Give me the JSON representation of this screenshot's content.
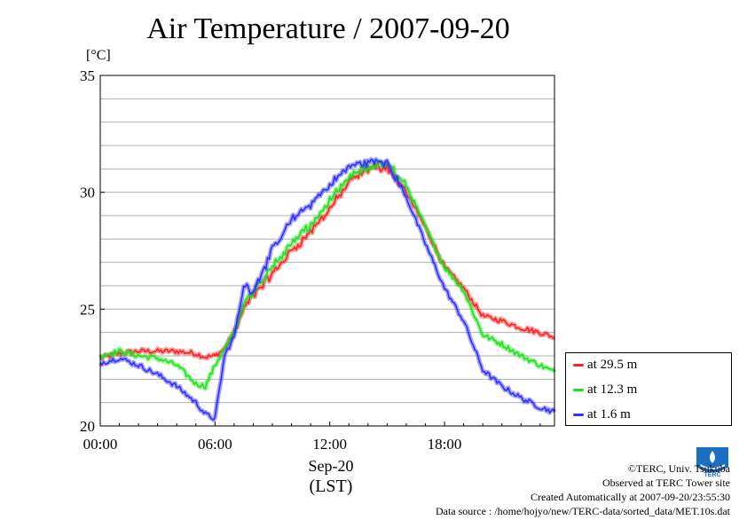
{
  "title": "Air Temperature / 2007-09-20",
  "chart_data": {
    "type": "line",
    "title": "Air Temperature / 2007-09-20",
    "ylabel": "[°C]",
    "xlabel": "Sep-20",
    "xlabel_sub": "(LST)",
    "x_unit": "hour of day",
    "xlim": [
      0,
      23.75
    ],
    "ylim": [
      20,
      35
    ],
    "xticks": [
      0,
      6,
      12,
      18
    ],
    "xtick_labels": [
      "00:00",
      "06:00",
      "12:00",
      "18:00"
    ],
    "yticks": [
      20,
      25,
      30,
      35
    ],
    "ytick_labels": [
      "20",
      "25",
      "30",
      "35"
    ],
    "grid": true,
    "legend_position": "lower-right outside",
    "x": [
      0,
      1,
      2,
      3,
      4,
      5,
      5.5,
      6,
      6.5,
      7,
      7.5,
      8,
      9,
      10,
      11,
      12,
      13,
      14,
      15,
      16,
      17,
      18,
      19,
      20,
      21,
      22,
      23,
      23.75
    ],
    "series": [
      {
        "name": "at 29.5 m",
        "color": "#ff2020",
        "values": [
          22.9,
          23.1,
          23.2,
          23.2,
          23.2,
          23.1,
          22.95,
          23.0,
          23.3,
          24.0,
          25.0,
          25.6,
          26.5,
          27.5,
          28.3,
          29.3,
          30.4,
          31.0,
          31.1,
          30.0,
          28.5,
          26.8,
          25.9,
          24.7,
          24.5,
          24.2,
          24.0,
          23.8
        ]
      },
      {
        "name": "at 12.3 m",
        "color": "#20e020",
        "values": [
          23.0,
          23.2,
          23.0,
          22.9,
          22.6,
          21.8,
          21.7,
          22.6,
          23.3,
          24.0,
          25.2,
          25.8,
          26.8,
          27.8,
          28.6,
          29.6,
          30.6,
          31.1,
          31.2,
          30.3,
          28.5,
          26.8,
          25.8,
          23.9,
          23.5,
          23.0,
          22.6,
          22.3
        ]
      },
      {
        "name": "at 1.6 m",
        "color": "#3030ff",
        "values": [
          22.7,
          22.9,
          22.6,
          22.2,
          21.7,
          21.0,
          20.5,
          20.3,
          23.0,
          23.8,
          26.0,
          25.8,
          27.5,
          28.8,
          29.5,
          30.3,
          31.1,
          31.3,
          31.3,
          29.8,
          27.8,
          25.9,
          24.5,
          22.4,
          21.7,
          21.2,
          20.8,
          20.6
        ]
      }
    ]
  },
  "credits": {
    "copyright": "©TERC, Univ. Tsukuba",
    "observed": "Observed at TERC Tower site",
    "created": "Created Automatically at 2007-09-20/23:55:30",
    "source": "Data source : /home/hojyo/new/TERC-data/sorted_data/MET.10s.dat"
  },
  "logo_text": "TERC"
}
